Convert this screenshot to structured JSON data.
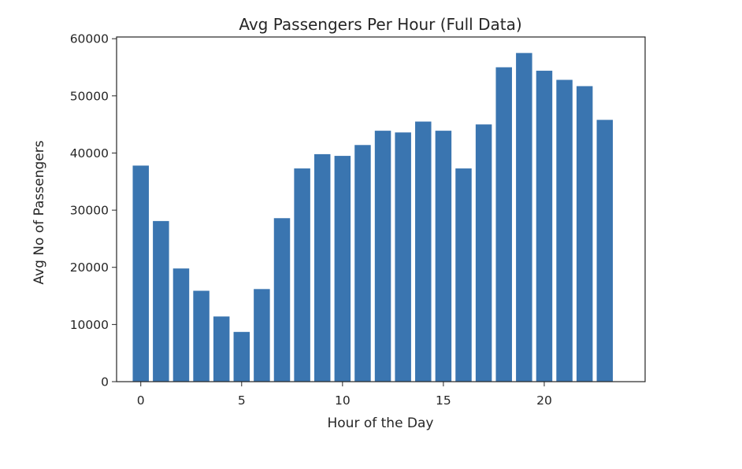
{
  "chart_data": {
    "type": "bar",
    "title": "Avg Passengers Per Hour (Full Data)",
    "xlabel": "Hour of the Day",
    "ylabel": "Avg No of Passengers",
    "categories": [
      0,
      1,
      2,
      3,
      4,
      5,
      6,
      7,
      8,
      9,
      10,
      11,
      12,
      13,
      14,
      15,
      16,
      17,
      18,
      19,
      20,
      21,
      22,
      23
    ],
    "values": [
      37800,
      28100,
      19800,
      15900,
      11400,
      8700,
      16200,
      28600,
      37300,
      39800,
      39500,
      41400,
      43900,
      43600,
      45500,
      43900,
      37300,
      45000,
      55000,
      57500,
      54400,
      52800,
      51700,
      45800
    ],
    "xlim": [
      -1.2,
      25.0
    ],
    "ylim": [
      0,
      60300
    ],
    "xticks": [
      0,
      5,
      10,
      15,
      20
    ],
    "yticks": [
      0,
      10000,
      20000,
      30000,
      40000,
      50000,
      60000
    ],
    "bar_color": "#3A75B0",
    "grid": false,
    "legend": "none"
  }
}
